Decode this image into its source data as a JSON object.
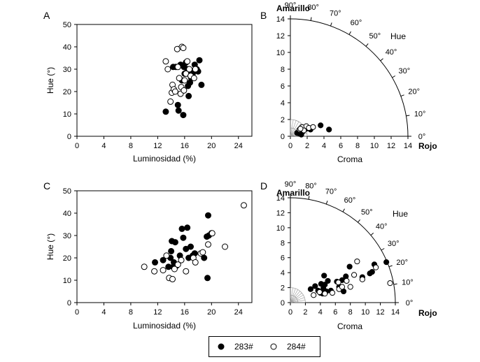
{
  "legend": {
    "series_a": "283#",
    "series_b": "284#"
  },
  "chart_data": [
    {
      "panel": "A",
      "type": "scatter",
      "xlabel": "Luminosidad (%)",
      "ylabel": "Hue (°)",
      "xlim": [
        0,
        26
      ],
      "ylim": [
        0,
        50
      ],
      "xticks": [
        0,
        4,
        8,
        12,
        16,
        20,
        24
      ],
      "yticks": [
        0,
        10,
        20,
        30,
        40,
        50
      ],
      "series": [
        {
          "name": "283#",
          "filled": true,
          "points": [
            [
              13.2,
              11
            ],
            [
              14.3,
              31
            ],
            [
              14.7,
              31
            ],
            [
              15.0,
              14
            ],
            [
              15.1,
              11.5
            ],
            [
              15.4,
              32
            ],
            [
              15.6,
              25
            ],
            [
              15.8,
              9.5
            ],
            [
              15.9,
              31
            ],
            [
              16.0,
              28
            ],
            [
              16.2,
              33
            ],
            [
              16.4,
              30
            ],
            [
              16.5,
              22.5
            ],
            [
              16.6,
              18
            ],
            [
              16.7,
              29
            ],
            [
              16.8,
              24
            ],
            [
              16.9,
              27
            ],
            [
              17.0,
              26
            ],
            [
              17.2,
              28
            ],
            [
              17.5,
              32
            ],
            [
              17.8,
              30
            ],
            [
              18.0,
              29
            ],
            [
              18.2,
              34
            ],
            [
              18.5,
              23
            ]
          ]
        },
        {
          "name": "284#",
          "filled": false,
          "points": [
            [
              13.2,
              33.5
            ],
            [
              13.5,
              30
            ],
            [
              13.9,
              15.5
            ],
            [
              14.1,
              19.5
            ],
            [
              14.2,
              23
            ],
            [
              14.4,
              21
            ],
            [
              14.6,
              20
            ],
            [
              14.9,
              39
            ],
            [
              15.0,
              31
            ],
            [
              15.2,
              26
            ],
            [
              15.4,
              19
            ],
            [
              15.5,
              22
            ],
            [
              15.6,
              40
            ],
            [
              15.8,
              39.5
            ],
            [
              15.9,
              20.5
            ],
            [
              16.0,
              25
            ],
            [
              16.2,
              28
            ],
            [
              16.4,
              33.5
            ],
            [
              16.7,
              30
            ],
            [
              16.9,
              27
            ],
            [
              17.4,
              26
            ],
            [
              17.6,
              30
            ]
          ]
        }
      ]
    },
    {
      "panel": "B",
      "type": "polar-scatter",
      "xlabel": "Croma",
      "top_label": "Amarillo",
      "right_label": "Rojo",
      "angle_title": "Hue",
      "rlim": [
        0,
        14
      ],
      "rticks": [
        0,
        2,
        4,
        6,
        8,
        10,
        12,
        14
      ],
      "angle_ticks": [
        "0°",
        "10°",
        "20°",
        "30°",
        "40°",
        "50°",
        "60°",
        "70°",
        "80°",
        "90°"
      ],
      "series": [
        {
          "name": "283#",
          "filled": true,
          "points": [
            [
              0.8,
              0.4
            ],
            [
              1.1,
              0.3
            ],
            [
              1.5,
              0.6
            ],
            [
              1.9,
              0.9
            ],
            [
              2.4,
              0.8
            ],
            [
              3.6,
              1.3
            ],
            [
              4.6,
              0.8
            ],
            [
              1.3,
              0.2
            ]
          ]
        },
        {
          "name": "284#",
          "filled": false,
          "points": [
            [
              1.1,
              0.8
            ],
            [
              1.4,
              1.1
            ],
            [
              1.6,
              0.7
            ],
            [
              1.9,
              1.2
            ],
            [
              2.2,
              1.0
            ],
            [
              2.7,
              1.1
            ],
            [
              1.2,
              0.9
            ]
          ]
        }
      ]
    },
    {
      "panel": "C",
      "type": "scatter",
      "xlabel": "Luminosidad (%)",
      "ylabel": "Hue (°)",
      "xlim": [
        0,
        26
      ],
      "ylim": [
        0,
        50
      ],
      "xticks": [
        0,
        4,
        8,
        12,
        16,
        20,
        24
      ],
      "yticks": [
        0,
        10,
        20,
        30,
        40,
        50
      ],
      "series": [
        {
          "name": "283#",
          "filled": true,
          "points": [
            [
              11.6,
              18
            ],
            [
              12.8,
              19
            ],
            [
              13.6,
              16
            ],
            [
              13.9,
              20
            ],
            [
              14.0,
              23
            ],
            [
              14.1,
              27.5
            ],
            [
              14.3,
              16
            ],
            [
              14.4,
              18
            ],
            [
              14.6,
              27
            ],
            [
              14.8,
              16.5
            ],
            [
              15.3,
              21
            ],
            [
              15.6,
              33
            ],
            [
              15.8,
              29
            ],
            [
              16.2,
              24
            ],
            [
              16.4,
              33.5
            ],
            [
              16.6,
              20
            ],
            [
              16.9,
              25
            ],
            [
              17.2,
              21
            ],
            [
              17.5,
              22
            ],
            [
              18.9,
              20
            ],
            [
              19.3,
              29.5
            ],
            [
              19.5,
              39
            ],
            [
              19.6,
              30
            ],
            [
              20.0,
              31
            ],
            [
              19.4,
              11
            ]
          ]
        },
        {
          "name": "284#",
          "filled": false,
          "points": [
            [
              10.0,
              16
            ],
            [
              11.5,
              14
            ],
            [
              12.8,
              14.5
            ],
            [
              13.3,
              21
            ],
            [
              13.7,
              11
            ],
            [
              14.2,
              10.5
            ],
            [
              14.5,
              15
            ],
            [
              15.0,
              17
            ],
            [
              15.5,
              19
            ],
            [
              16.2,
              14
            ],
            [
              17.3,
              20
            ],
            [
              17.6,
              18
            ],
            [
              18.4,
              22
            ],
            [
              18.7,
              22.5
            ],
            [
              19.5,
              26
            ],
            [
              20.1,
              31
            ],
            [
              22.0,
              25
            ],
            [
              24.8,
              43.5
            ]
          ]
        }
      ]
    },
    {
      "panel": "D",
      "type": "polar-scatter",
      "xlabel": "Croma",
      "top_label": "Amarillo",
      "right_label": "Rojo",
      "angle_title": "Hue",
      "rlim": [
        0,
        14
      ],
      "rticks": [
        0,
        2,
        4,
        6,
        8,
        10,
        12,
        14
      ],
      "angle_ticks": [
        "0°",
        "10°",
        "20°",
        "30°",
        "40°",
        "50°",
        "60°",
        "70°",
        "80°",
        "90°"
      ],
      "series": [
        {
          "name": "283#",
          "filled": true,
          "points": [
            [
              2.7,
              1.8
            ],
            [
              3.3,
              2.2
            ],
            [
              3.7,
              1.6
            ],
            [
              4.0,
              1.3
            ],
            [
              4.1,
              2.5
            ],
            [
              4.3,
              1.2
            ],
            [
              4.4,
              1.9
            ],
            [
              4.5,
              3.6
            ],
            [
              4.6,
              2.4
            ],
            [
              4.8,
              1.5
            ],
            [
              5.0,
              2.9
            ],
            [
              5.4,
              1.6
            ],
            [
              6.2,
              2.8
            ],
            [
              6.5,
              2.1
            ],
            [
              6.9,
              3.0
            ],
            [
              7.1,
              1.5
            ],
            [
              7.4,
              3.5
            ],
            [
              7.9,
              4.8
            ],
            [
              9.6,
              3.4
            ],
            [
              10.6,
              3.9
            ],
            [
              10.9,
              4.1
            ],
            [
              11.2,
              5.1
            ],
            [
              12.8,
              5.4
            ]
          ]
        },
        {
          "name": "284#",
          "filled": false,
          "points": [
            [
              3.1,
              1.0
            ],
            [
              3.9,
              1.4
            ],
            [
              4.6,
              1.2
            ],
            [
              5.6,
              1.3
            ],
            [
              6.4,
              2.7
            ],
            [
              6.5,
              1.8
            ],
            [
              6.9,
              2.1
            ],
            [
              7.5,
              2.9
            ],
            [
              8.0,
              2.1
            ],
            [
              8.5,
              3.7
            ],
            [
              8.9,
              5.5
            ],
            [
              9.6,
              3.1
            ],
            [
              11.4,
              4.7
            ],
            [
              13.3,
              2.6
            ]
          ]
        }
      ]
    }
  ]
}
